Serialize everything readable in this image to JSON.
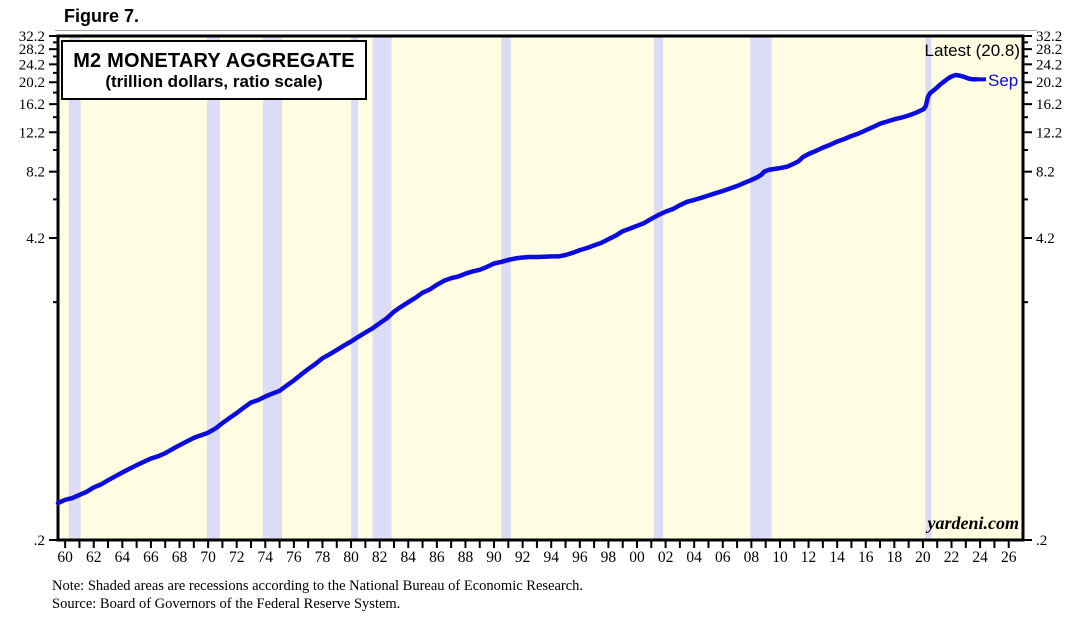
{
  "figure_label": "Figure 7.",
  "chart": {
    "legend_title": "M2 MONETARY AGGREGATE",
    "legend_subtitle": "(trillion dollars, ratio scale)",
    "latest_label": "Latest (20.8)",
    "month_label": "Sep",
    "watermark": "yardeni.com",
    "colors": {
      "plot_background": "#fffee2",
      "recession_band": "#dcdcf6",
      "line": "#0b0be0",
      "axis": "#000000",
      "label_blue": "#0b0be0"
    }
  },
  "notes": {
    "note": "Note: Shaded areas are recessions according to the National Bureau of Economic Research.",
    "source": "Source: Board of Governors of the Federal Reserve System."
  },
  "chart_data": {
    "type": "line",
    "title": "M2 MONETARY AGGREGATE",
    "subtitle": "(trillion dollars, ratio scale)",
    "ylabel": "trillion dollars",
    "y_scale": "log",
    "x_range": [
      1959.5,
      2027.0
    ],
    "y_range": [
      0.2,
      32.2
    ],
    "grid": false,
    "legend_position": "top-left box",
    "latest_value": 20.8,
    "latest_month": "Sep",
    "y_ticks_labeled": [
      {
        "value": 0.2,
        "label": ".2"
      },
      {
        "value": 4.2,
        "label": "4.2"
      },
      {
        "value": 8.2,
        "label": "8.2"
      },
      {
        "value": 12.2,
        "label": "12.2"
      },
      {
        "value": 16.2,
        "label": "16.2"
      },
      {
        "value": 20.2,
        "label": "20.2"
      },
      {
        "value": 24.2,
        "label": "24.2"
      },
      {
        "value": 28.2,
        "label": "28.2"
      },
      {
        "value": 32.2,
        "label": "32.2"
      }
    ],
    "y_ticks_minor": [
      2.2,
      6.2,
      10.2,
      14.2,
      18.2,
      22.2,
      26.2,
      30.2
    ],
    "x_ticks_labeled": [
      {
        "year": 1960,
        "label": "60"
      },
      {
        "year": 1962,
        "label": "62"
      },
      {
        "year": 1964,
        "label": "64"
      },
      {
        "year": 1966,
        "label": "66"
      },
      {
        "year": 1968,
        "label": "68"
      },
      {
        "year": 1970,
        "label": "70"
      },
      {
        "year": 1972,
        "label": "72"
      },
      {
        "year": 1974,
        "label": "74"
      },
      {
        "year": 1976,
        "label": "76"
      },
      {
        "year": 1978,
        "label": "78"
      },
      {
        "year": 1980,
        "label": "80"
      },
      {
        "year": 1982,
        "label": "82"
      },
      {
        "year": 1984,
        "label": "84"
      },
      {
        "year": 1986,
        "label": "86"
      },
      {
        "year": 1988,
        "label": "88"
      },
      {
        "year": 1990,
        "label": "90"
      },
      {
        "year": 1992,
        "label": "92"
      },
      {
        "year": 1994,
        "label": "94"
      },
      {
        "year": 1996,
        "label": "96"
      },
      {
        "year": 1998,
        "label": "98"
      },
      {
        "year": 2000,
        "label": "00"
      },
      {
        "year": 2002,
        "label": "02"
      },
      {
        "year": 2004,
        "label": "04"
      },
      {
        "year": 2006,
        "label": "06"
      },
      {
        "year": 2008,
        "label": "08"
      },
      {
        "year": 2010,
        "label": "10"
      },
      {
        "year": 2012,
        "label": "12"
      },
      {
        "year": 2014,
        "label": "14"
      },
      {
        "year": 2016,
        "label": "16"
      },
      {
        "year": 2018,
        "label": "18"
      },
      {
        "year": 2020,
        "label": "20"
      },
      {
        "year": 2022,
        "label": "22"
      },
      {
        "year": 2024,
        "label": "24"
      },
      {
        "year": 2026,
        "label": "26"
      }
    ],
    "x_minor_ticks": {
      "from": 1960,
      "to": 2026,
      "step": 1
    },
    "recessions": [
      [
        1960.25,
        1961.08
      ],
      [
        1969.92,
        1970.83
      ],
      [
        1973.83,
        1975.17
      ],
      [
        1980.0,
        1980.5
      ],
      [
        1981.5,
        1982.83
      ],
      [
        1990.5,
        1991.17
      ],
      [
        2001.17,
        2001.83
      ],
      [
        2007.92,
        2009.42
      ],
      [
        2020.17,
        2020.6
      ]
    ],
    "series": [
      {
        "name": "M2",
        "color": "#0b0be0",
        "points": [
          [
            1959.5,
            0.29
          ],
          [
            1960,
            0.3
          ],
          [
            1960.5,
            0.305
          ],
          [
            1961,
            0.315
          ],
          [
            1961.5,
            0.325
          ],
          [
            1962,
            0.34
          ],
          [
            1962.5,
            0.35
          ],
          [
            1963,
            0.365
          ],
          [
            1963.5,
            0.38
          ],
          [
            1964,
            0.395
          ],
          [
            1964.5,
            0.41
          ],
          [
            1965,
            0.425
          ],
          [
            1965.5,
            0.44
          ],
          [
            1966,
            0.455
          ],
          [
            1966.5,
            0.465
          ],
          [
            1967,
            0.48
          ],
          [
            1967.5,
            0.5
          ],
          [
            1968,
            0.52
          ],
          [
            1968.5,
            0.54
          ],
          [
            1969,
            0.56
          ],
          [
            1969.5,
            0.575
          ],
          [
            1970,
            0.59
          ],
          [
            1970.5,
            0.615
          ],
          [
            1971,
            0.65
          ],
          [
            1971.5,
            0.685
          ],
          [
            1972,
            0.72
          ],
          [
            1972.5,
            0.76
          ],
          [
            1973,
            0.8
          ],
          [
            1973.5,
            0.82
          ],
          [
            1974,
            0.85
          ],
          [
            1974.5,
            0.875
          ],
          [
            1975,
            0.9
          ],
          [
            1975.5,
            0.95
          ],
          [
            1976,
            1.0
          ],
          [
            1976.5,
            1.06
          ],
          [
            1977,
            1.12
          ],
          [
            1977.5,
            1.18
          ],
          [
            1978,
            1.25
          ],
          [
            1978.5,
            1.3
          ],
          [
            1979,
            1.36
          ],
          [
            1979.5,
            1.42
          ],
          [
            1980,
            1.48
          ],
          [
            1980.5,
            1.55
          ],
          [
            1981,
            1.62
          ],
          [
            1981.5,
            1.69
          ],
          [
            1982,
            1.78
          ],
          [
            1982.5,
            1.87
          ],
          [
            1983,
            2.0
          ],
          [
            1983.5,
            2.1
          ],
          [
            1984,
            2.2
          ],
          [
            1984.5,
            2.3
          ],
          [
            1985,
            2.42
          ],
          [
            1985.5,
            2.5
          ],
          [
            1986,
            2.62
          ],
          [
            1986.5,
            2.73
          ],
          [
            1987,
            2.8
          ],
          [
            1987.5,
            2.85
          ],
          [
            1988,
            2.93
          ],
          [
            1988.5,
            3.0
          ],
          [
            1989,
            3.05
          ],
          [
            1989.5,
            3.14
          ],
          [
            1990,
            3.25
          ],
          [
            1990.5,
            3.3
          ],
          [
            1991,
            3.37
          ],
          [
            1991.5,
            3.42
          ],
          [
            1992,
            3.45
          ],
          [
            1992.5,
            3.47
          ],
          [
            1993,
            3.47
          ],
          [
            1993.5,
            3.48
          ],
          [
            1994,
            3.49
          ],
          [
            1994.5,
            3.49
          ],
          [
            1995,
            3.54
          ],
          [
            1995.5,
            3.62
          ],
          [
            1996,
            3.72
          ],
          [
            1996.5,
            3.8
          ],
          [
            1997,
            3.9
          ],
          [
            1997.5,
            4.0
          ],
          [
            1998,
            4.15
          ],
          [
            1998.5,
            4.3
          ],
          [
            1999,
            4.5
          ],
          [
            1999.5,
            4.62
          ],
          [
            2000,
            4.75
          ],
          [
            2000.5,
            4.88
          ],
          [
            2001,
            5.1
          ],
          [
            2001.5,
            5.3
          ],
          [
            2002,
            5.48
          ],
          [
            2002.5,
            5.62
          ],
          [
            2003,
            5.85
          ],
          [
            2003.5,
            6.05
          ],
          [
            2004,
            6.17
          ],
          [
            2004.5,
            6.3
          ],
          [
            2005,
            6.45
          ],
          [
            2005.5,
            6.6
          ],
          [
            2006,
            6.75
          ],
          [
            2006.5,
            6.92
          ],
          [
            2007,
            7.1
          ],
          [
            2007.5,
            7.32
          ],
          [
            2008,
            7.55
          ],
          [
            2008.4,
            7.75
          ],
          [
            2008.7,
            7.95
          ],
          [
            2008.9,
            8.2
          ],
          [
            2009.2,
            8.35
          ],
          [
            2009.6,
            8.42
          ],
          [
            2010,
            8.5
          ],
          [
            2010.5,
            8.62
          ],
          [
            2011,
            8.9
          ],
          [
            2011.3,
            9.1
          ],
          [
            2011.6,
            9.5
          ],
          [
            2012,
            9.8
          ],
          [
            2012.5,
            10.1
          ],
          [
            2013,
            10.45
          ],
          [
            2013.5,
            10.75
          ],
          [
            2014,
            11.1
          ],
          [
            2014.5,
            11.4
          ],
          [
            2015,
            11.75
          ],
          [
            2015.5,
            12.05
          ],
          [
            2016,
            12.45
          ],
          [
            2016.5,
            12.85
          ],
          [
            2017,
            13.3
          ],
          [
            2017.5,
            13.6
          ],
          [
            2018,
            13.9
          ],
          [
            2018.5,
            14.15
          ],
          [
            2019,
            14.45
          ],
          [
            2019.5,
            14.85
          ],
          [
            2020.05,
            15.4
          ],
          [
            2020.2,
            15.9
          ],
          [
            2020.35,
            17.4
          ],
          [
            2020.5,
            18.1
          ],
          [
            2020.75,
            18.6
          ],
          [
            2021,
            19.2
          ],
          [
            2021.25,
            19.85
          ],
          [
            2021.5,
            20.4
          ],
          [
            2021.75,
            20.95
          ],
          [
            2022,
            21.4
          ],
          [
            2022.3,
            21.74
          ],
          [
            2022.55,
            21.6
          ],
          [
            2022.8,
            21.4
          ],
          [
            2023,
            21.2
          ],
          [
            2023.2,
            20.95
          ],
          [
            2023.4,
            20.85
          ],
          [
            2023.6,
            20.78
          ],
          [
            2023.75,
            20.8
          ]
        ]
      }
    ]
  }
}
